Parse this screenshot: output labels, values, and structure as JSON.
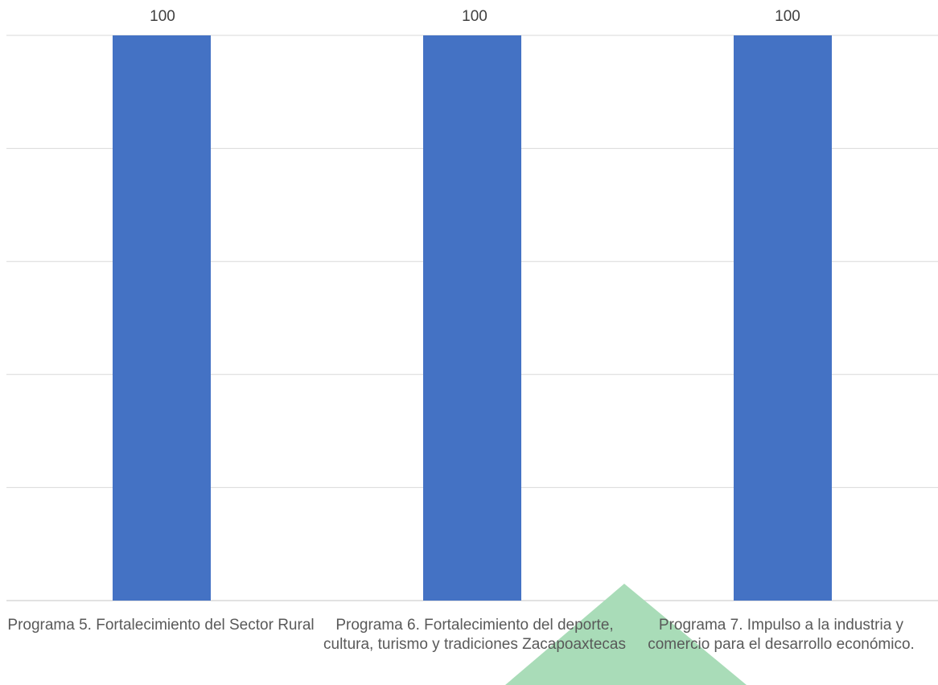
{
  "chart_data": {
    "type": "bar",
    "categories": [
      "Programa 5. Fortalecimiento del Sector Rural",
      "Programa 6. Fortalecimiento del deporte, cultura, turismo y tradiciones Zacapoaxtecas",
      "Programa 7. Impulso a la industria y comercio para el desarrollo económico."
    ],
    "values": [
      100,
      100,
      100
    ],
    "data_labels": [
      "100",
      "100",
      "100"
    ],
    "title": "",
    "xlabel": "",
    "ylabel": "",
    "ylim": [
      0,
      100
    ],
    "grid": true,
    "legend": "none",
    "colors": {
      "bar": "#4472C4",
      "grid": "#D9D9D9",
      "text": "#595959",
      "decor_triangle": "#A9DCB8"
    }
  }
}
